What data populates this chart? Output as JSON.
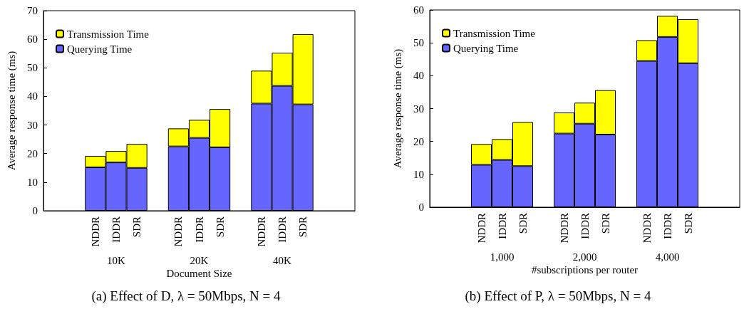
{
  "chart_data": [
    {
      "type": "bar",
      "stacked": true,
      "title": "(a) Effect of D, λ = 50Mbps, N = 4",
      "xlabel": "Document Size",
      "ylabel": "Average response time (ms)",
      "categories": [
        null,
        null,
        "NDDR",
        "IDDR",
        "SDR",
        null,
        "NDDR",
        "IDDR",
        "SDR",
        null,
        "NDDR",
        "IDDR",
        "SDR",
        null,
        null
      ],
      "series": [
        {
          "name": "Querying Time",
          "color": "#6666ff",
          "values": [
            null,
            null,
            15.2,
            16.9,
            15.0,
            null,
            22.5,
            25.5,
            22.2,
            null,
            37.5,
            43.7,
            37.2,
            null,
            null
          ]
        },
        {
          "name": "Transmission Time",
          "color": "#ffff00",
          "values": [
            null,
            null,
            4.0,
            4.0,
            8.4,
            null,
            6.3,
            6.3,
            13.4,
            null,
            11.5,
            11.6,
            24.6,
            null,
            null
          ]
        }
      ],
      "annotations": [
        "10K",
        "20K",
        "40K"
      ],
      "ylim": [
        0,
        70
      ],
      "yticks": [
        0,
        10,
        20,
        30,
        40,
        50,
        60,
        70
      ],
      "grid": false,
      "legend": "top left"
    },
    {
      "type": "bar",
      "stacked": true,
      "title": "(b) Effect of P, λ = 50Mbps, N = 4",
      "xlabel": "#subscriptions per router",
      "ylabel": "Average response time (ms)",
      "categories": [
        null,
        null,
        "NDDR",
        "IDDR",
        "SDR",
        null,
        "NDDR",
        "IDDR",
        "SDR",
        null,
        "NDDR",
        "IDDR",
        "SDR",
        null,
        null
      ],
      "series": [
        {
          "name": "Querying Time",
          "color": "#6666ff",
          "values": [
            null,
            null,
            12.9,
            14.4,
            12.5,
            null,
            22.4,
            25.4,
            22.1,
            null,
            44.5,
            51.8,
            43.8,
            null,
            null
          ]
        },
        {
          "name": "Transmission Time",
          "color": "#ffff00",
          "values": [
            null,
            null,
            6.3,
            6.3,
            13.4,
            null,
            6.4,
            6.4,
            13.5,
            null,
            6.3,
            6.4,
            13.4,
            null,
            null
          ]
        }
      ],
      "annotations": [
        "1,000",
        "2,000",
        "4,000"
      ],
      "ylim": [
        0,
        60
      ],
      "yticks": [
        0,
        10,
        20,
        30,
        40,
        50,
        60
      ],
      "grid": false,
      "legend": "top left"
    }
  ]
}
